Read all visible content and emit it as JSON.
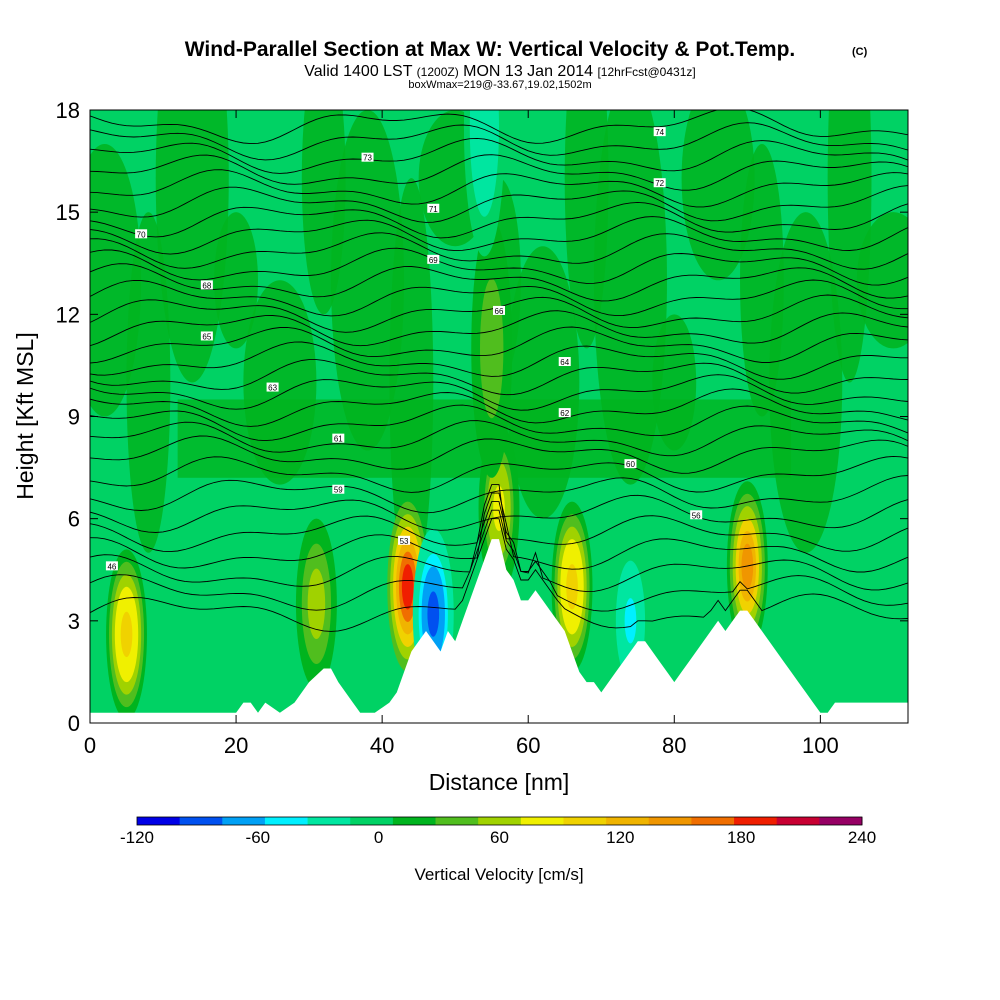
{
  "chart_data": {
    "type": "heatmap",
    "title": "Wind-Parallel Section at Max W: Vertical Velocity & Pot.Temp.",
    "title_mark": "(C)",
    "subtitle_parts": {
      "valid": "Valid 1400 LST",
      "utc": "(1200Z)",
      "date": "MON 13 Jan 2014",
      "fcst": "[12hrFcst@0431z]"
    },
    "box_info": "boxWmax=219@-33.67,19.02,1502m",
    "xlabel": "Distance [nm]",
    "ylabel": "Height [Kft MSL]",
    "xlim": [
      0,
      112
    ],
    "ylim": [
      0,
      18
    ],
    "x_ticks": [
      0,
      20,
      40,
      60,
      80,
      100
    ],
    "x_tick_labels": [
      "0",
      "20",
      "40",
      "60",
      "80",
      "100"
    ],
    "y_ticks": [
      0,
      3,
      6,
      9,
      12,
      15,
      18
    ],
    "y_tick_labels": [
      "0",
      "3",
      "6",
      "9",
      "12",
      "15",
      "18"
    ],
    "colorbar": {
      "label": "Vertical Velocity [cm/s]",
      "min": -120,
      "max": 240,
      "tick_values": [
        -120,
        -60,
        0,
        60,
        120,
        180,
        240
      ],
      "tick_labels": [
        "-120",
        "-60",
        "0",
        "60",
        "120",
        "180",
        "240"
      ],
      "colors": [
        "#0000e6",
        "#0050f0",
        "#00a0f5",
        "#00f0ff",
        "#00e6a0",
        "#00d264",
        "#00b41e",
        "#50be1e",
        "#a0d200",
        "#f0f000",
        "#f0d200",
        "#f0b400",
        "#f09600",
        "#f06e00",
        "#f01e00",
        "#c80032",
        "#960064"
      ]
    },
    "terrain_profile": {
      "x": [
        0,
        20,
        21,
        22,
        23,
        24,
        26,
        28,
        29,
        30,
        32,
        33,
        34,
        36,
        37,
        39,
        41,
        42,
        43,
        44,
        45,
        46,
        47,
        48,
        49,
        50,
        51,
        52,
        53,
        54,
        55,
        56,
        57,
        58,
        59,
        60,
        61,
        62,
        63,
        64,
        65,
        66,
        67,
        68,
        69,
        70,
        71,
        72,
        73,
        74,
        75,
        76,
        77,
        78,
        79,
        80,
        81,
        82,
        83,
        84,
        85,
        86,
        87,
        88,
        89,
        90,
        91,
        92,
        93,
        94,
        95,
        96,
        97,
        98,
        99,
        100,
        101,
        102,
        103,
        104,
        112
      ],
      "height": [
        0.3,
        0.3,
        0.6,
        0.6,
        0.3,
        0.6,
        0.3,
        0.6,
        0.9,
        1.2,
        1.6,
        1.6,
        1.2,
        0.6,
        0.3,
        0.3,
        0.6,
        0.9,
        1.5,
        2.1,
        2.4,
        2.7,
        2.4,
        2.1,
        2.7,
        2.4,
        3.0,
        3.6,
        4.2,
        4.8,
        5.4,
        5.4,
        4.5,
        4.2,
        3.6,
        3.6,
        3.9,
        3.6,
        3.3,
        3.0,
        2.7,
        2.1,
        1.5,
        1.2,
        1.2,
        0.9,
        1.2,
        1.5,
        1.8,
        2.1,
        2.4,
        2.4,
        2.1,
        1.8,
        1.5,
        1.2,
        1.5,
        1.8,
        2.1,
        2.4,
        2.7,
        3.0,
        2.7,
        3.0,
        3.3,
        3.3,
        3.0,
        2.7,
        2.4,
        2.1,
        1.8,
        1.5,
        1.2,
        0.9,
        0.6,
        0.3,
        0.3,
        0.6,
        0.6,
        0.6,
        0.6
      ]
    },
    "vertical_velocity_cores": [
      {
        "x": 5,
        "height": 2.6,
        "peak_cm_s": 110
      },
      {
        "x": 31,
        "height": 3.5,
        "peak_cm_s": 60
      },
      {
        "x": 43.5,
        "height": 4.0,
        "peak_cm_s": 195
      },
      {
        "x": 47,
        "height": 3.2,
        "peak_cm_s": -90
      },
      {
        "x": 56,
        "height": 6.3,
        "peak_cm_s": 80
      },
      {
        "x": 66,
        "height": 4.0,
        "peak_cm_s": 110
      },
      {
        "x": 74,
        "height": 3.0,
        "peak_cm_s": -40
      },
      {
        "x": 90,
        "height": 4.6,
        "peak_cm_s": 140
      },
      {
        "x": 55,
        "height": 11.0,
        "peak_cm_s": 45
      },
      {
        "x": 54,
        "height": 17.5,
        "peak_cm_s": -35
      }
    ],
    "isentrope_labels": [
      "46",
      "53",
      "56",
      "59",
      "60",
      "61",
      "62",
      "63",
      "64",
      "65",
      "66",
      "68",
      "69",
      "70",
      "71",
      "72",
      "73",
      "74"
    ]
  }
}
